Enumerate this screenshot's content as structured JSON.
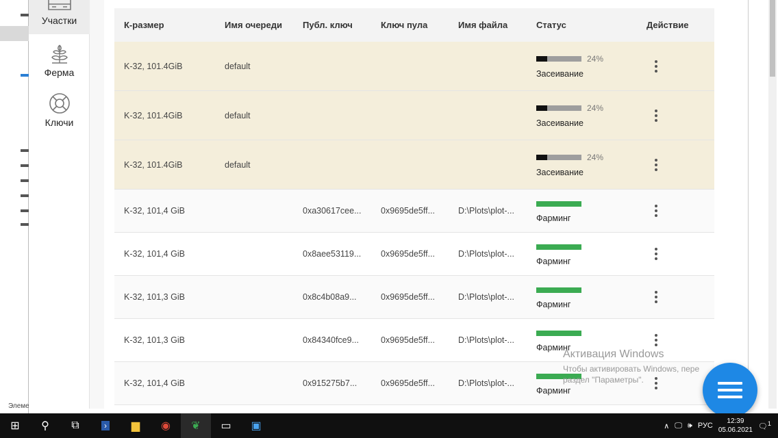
{
  "explorer": {
    "status": "Элеме..."
  },
  "sidebar": {
    "items": [
      {
        "label": "Участки",
        "icon": "hard-drive-icon",
        "active": true
      },
      {
        "label": "Ферма",
        "icon": "plant-icon"
      },
      {
        "label": "Ключи",
        "icon": "lifebuoy-icon"
      }
    ]
  },
  "table": {
    "headers": [
      "К-размер",
      "Имя очереди",
      "Публ. ключ",
      "Ключ пула",
      "Имя файла",
      "Статус",
      "Действие"
    ],
    "plotting": [
      {
        "size": "K-32, 101.4GiB",
        "queue": "default",
        "progress": 24,
        "progress_label": "24%",
        "status": "Засеивание"
      },
      {
        "size": "K-32, 101.4GiB",
        "queue": "default",
        "progress": 24,
        "progress_label": "24%",
        "status": "Засеивание"
      },
      {
        "size": "K-32, 101.4GiB",
        "queue": "default",
        "progress": 24,
        "progress_label": "24%",
        "status": "Засеивание"
      }
    ],
    "plots": [
      {
        "size": "K-32, 101,4 GiB",
        "pub": "0xa30617cee...",
        "pool": "0x9695de5ff...",
        "file": "D:\\Plots\\plot-...",
        "status": "Фарминг"
      },
      {
        "size": "K-32, 101,4 GiB",
        "pub": "0x8aee53119...",
        "pool": "0x9695de5ff...",
        "file": "D:\\Plots\\plot-...",
        "status": "Фарминг"
      },
      {
        "size": "K-32, 101,3 GiB",
        "pub": "0x8c4b08a9...",
        "pool": "0x9695de5ff...",
        "file": "D:\\Plots\\plot-...",
        "status": "Фарминг"
      },
      {
        "size": "K-32, 101,3 GiB",
        "pub": "0x84340fce9...",
        "pool": "0x9695de5ff...",
        "file": "D:\\Plots\\plot-...",
        "status": "Фарминг"
      },
      {
        "size": "K-32, 101,4 GiB",
        "pub": "0x915275b7...",
        "pool": "0x9695de5ff...",
        "file": "D:\\Plots\\plot-...",
        "status": "Фарминг"
      }
    ]
  },
  "colors": {
    "plotting_row": "#f4eedb",
    "farming_bar": "#3bab52",
    "fab": "#1e88e5"
  },
  "watermark": {
    "title": "Активация Windows",
    "line1": "Чтобы активировать Windows, пере",
    "line2": "раздел \"Параметры\"."
  },
  "taskbar": {
    "lang": "РУС",
    "time": "12:39",
    "date": "05.06.2021",
    "notifications": "1"
  }
}
